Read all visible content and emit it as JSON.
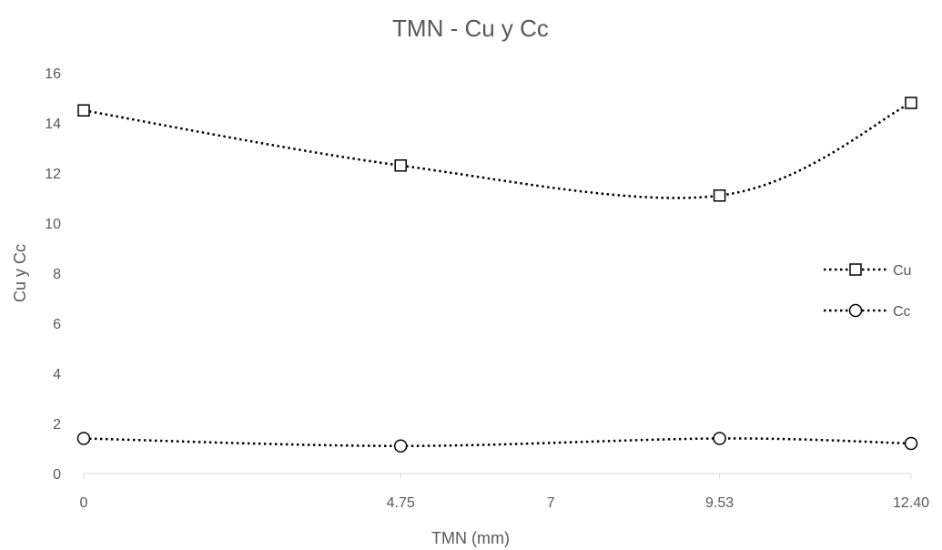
{
  "chart_data": {
    "type": "line",
    "title": "TMN - Cu y Cc",
    "xlabel": "TMN (mm)",
    "ylabel": "Cu  y  Cc",
    "x": [
      0,
      4.75,
      9.53,
      12.4
    ],
    "x_tick_values": [
      0,
      4.75,
      7,
      9.53,
      12.4
    ],
    "x_tick_labels": [
      "0",
      "4.75",
      "7",
      "9.53",
      "12.40"
    ],
    "xlim": [
      0,
      12.4
    ],
    "ylim": [
      0,
      16
    ],
    "y_ticks": [
      0,
      2,
      4,
      6,
      8,
      10,
      12,
      14,
      16
    ],
    "grid": false,
    "smooth": true,
    "legend_position": "right",
    "series": [
      {
        "name": "Cu",
        "marker": "square",
        "color": "#000000",
        "values": [
          14.5,
          12.3,
          11.1,
          14.8
        ]
      },
      {
        "name": "Cc",
        "marker": "circle",
        "color": "#000000",
        "values": [
          1.4,
          1.1,
          1.4,
          1.2
        ]
      }
    ]
  }
}
